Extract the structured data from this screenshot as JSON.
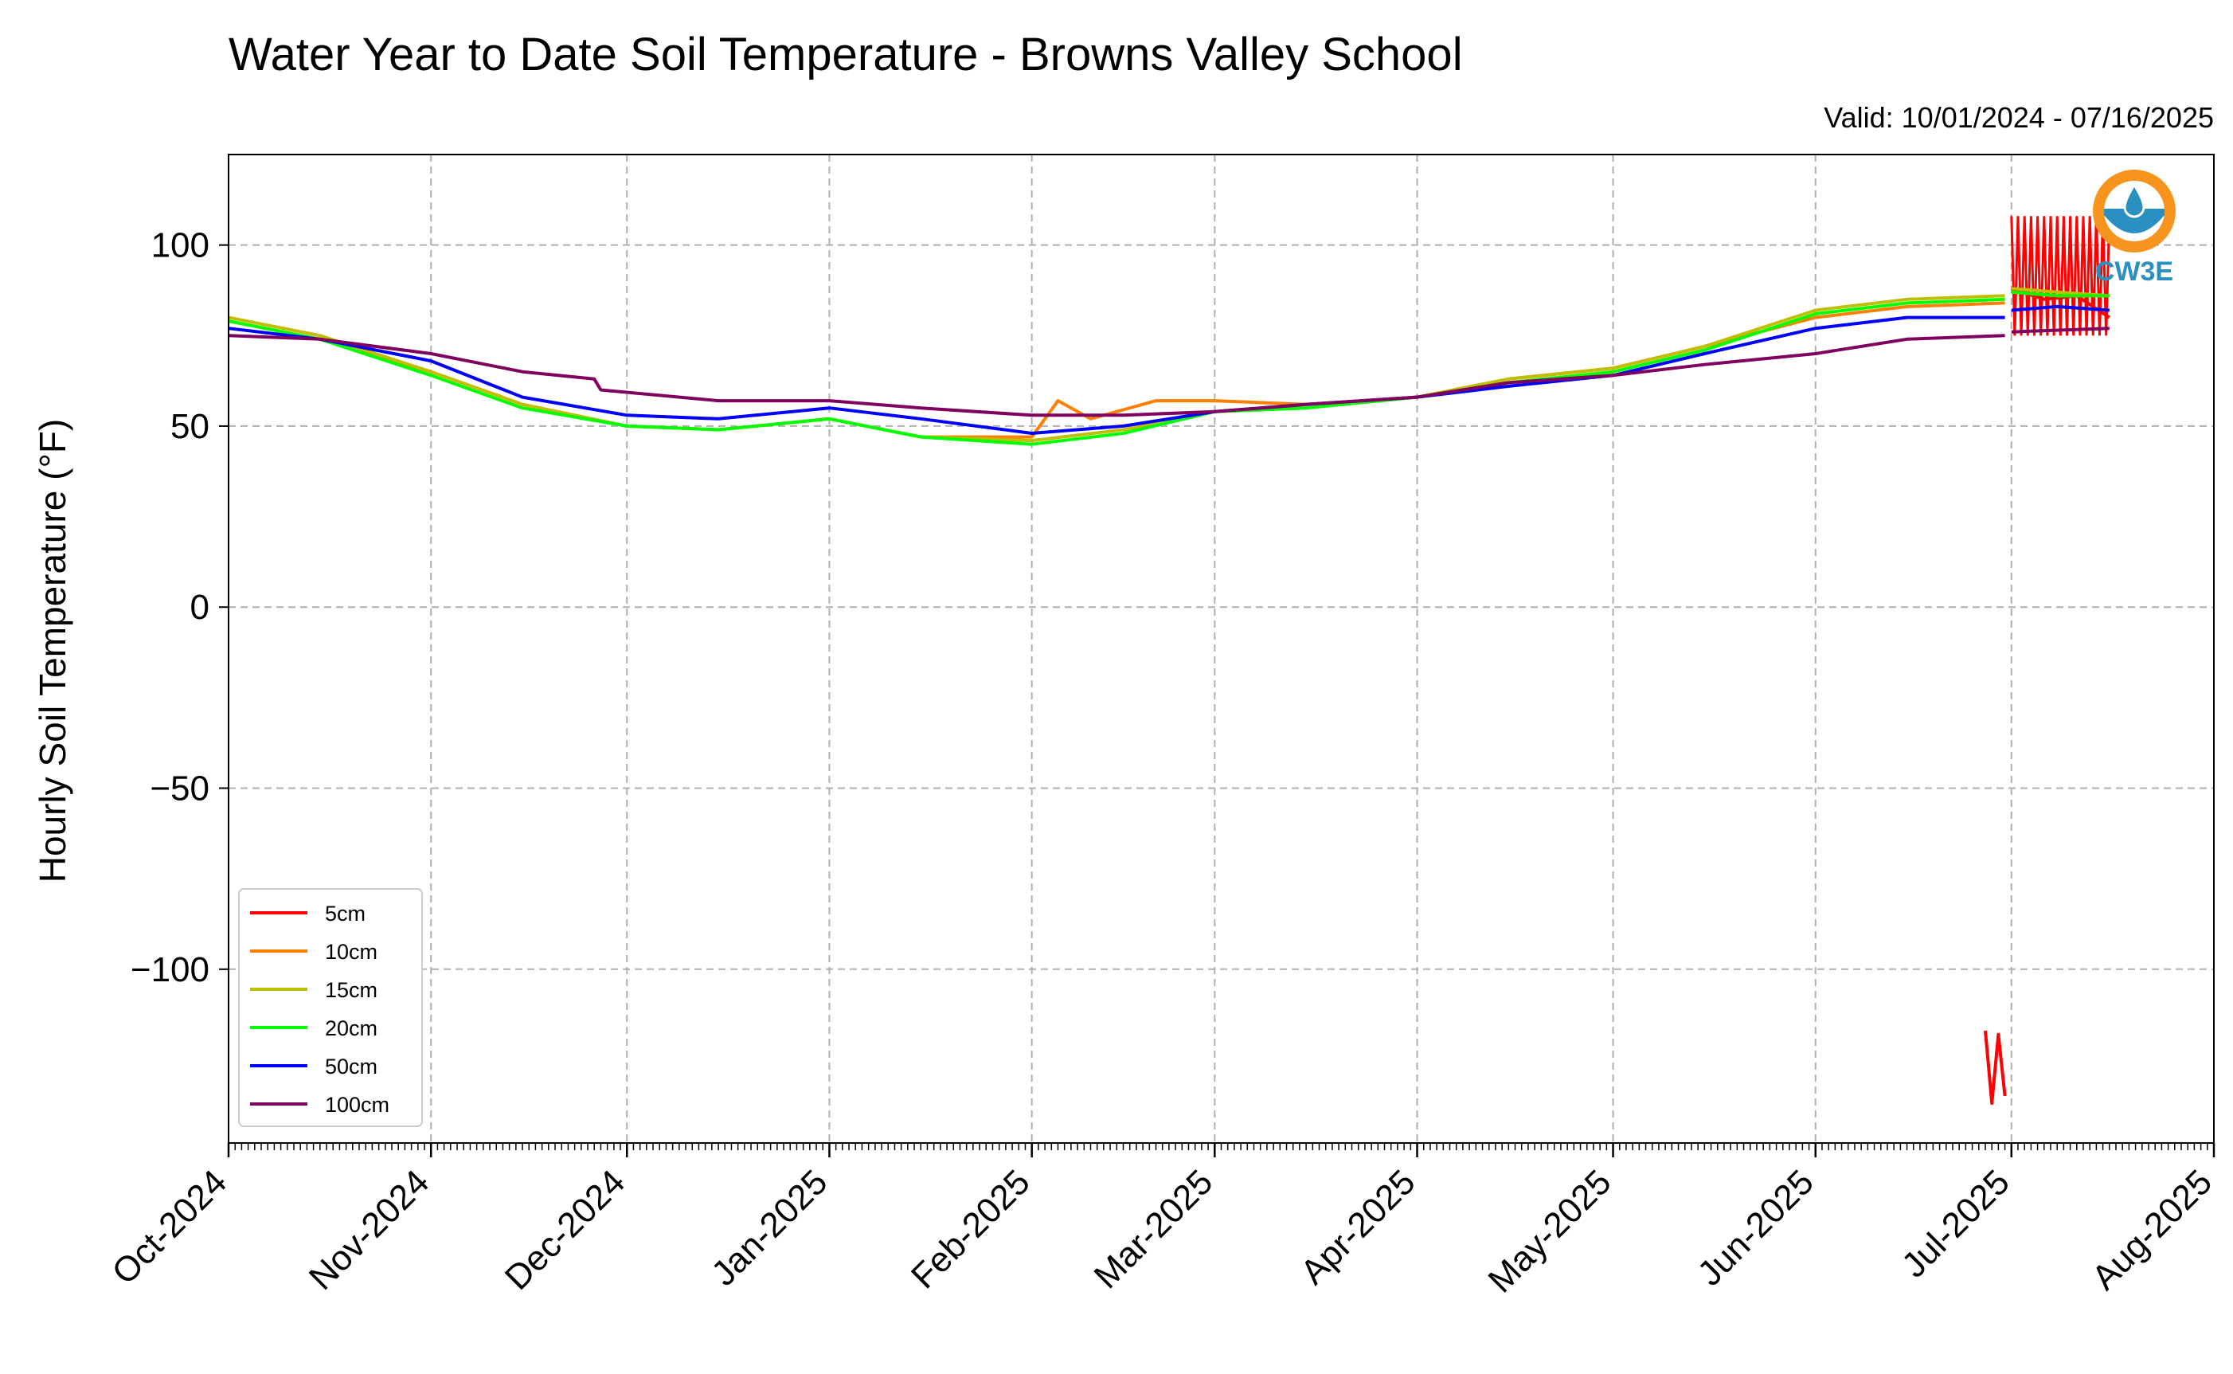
{
  "chart_data": {
    "type": "line",
    "title": "Water Year to Date Soil Temperature - Browns Valley School",
    "subtitle": "Valid: 10/01/2024 - 07/16/2025",
    "ylabel": "Hourly Soil Temperature (°F)",
    "xlabel": "",
    "ylim": [
      -148,
      125
    ],
    "xlim": [
      "2024-10-01",
      "2025-08-01"
    ],
    "yticks": [
      100,
      50,
      0,
      -50,
      -100
    ],
    "ytick_labels": [
      "100",
      "50",
      "0",
      "−50",
      "−100"
    ],
    "xtick_labels": [
      "Oct-2024",
      "Nov-2024",
      "Dec-2024",
      "Jan-2025",
      "Feb-2025",
      "Mar-2025",
      "Apr-2025",
      "May-2025",
      "Jun-2025",
      "Jul-2025",
      "Aug-2025"
    ],
    "grid": true,
    "legend_position": "lower-left",
    "logo_text": "CW3E",
    "series": [
      {
        "name": "5cm",
        "color": "#ff0000",
        "segments": [
          {
            "x": [
              "2025-06-27",
              "2025-06-28",
              "2025-06-29",
              "2025-06-30"
            ],
            "y": [
              -117,
              -137,
              -118,
              -135
            ]
          },
          {
            "x": [
              "2025-07-01",
              "2025-07-06",
              "2025-07-11",
              "2025-07-16"
            ],
            "y": [
              88,
              85,
              86,
              80
            ]
          }
        ],
        "oscillation": {
          "start": "2025-07-01",
          "end": "2025-07-16",
          "high": 108,
          "low": 75
        }
      },
      {
        "name": "10cm",
        "color": "#ff8000",
        "segments": [
          {
            "x": [
              "2024-10-01",
              "2024-10-15",
              "2024-11-01",
              "2024-11-15",
              "2024-12-01",
              "2024-12-15",
              "2025-01-01",
              "2025-01-15",
              "2025-02-01",
              "2025-02-05",
              "2025-02-10",
              "2025-02-20",
              "2025-03-01",
              "2025-03-15",
              "2025-04-01",
              "2025-04-15",
              "2025-05-01",
              "2025-05-15",
              "2025-06-01",
              "2025-06-15",
              "2025-06-30"
            ],
            "y": [
              79,
              74,
              65,
              56,
              50,
              49,
              52,
              47,
              47,
              57,
              52,
              57,
              57,
              56,
              58,
              63,
              66,
              72,
              80,
              83,
              84
            ]
          },
          {
            "x": [
              "2025-07-01",
              "2025-07-08",
              "2025-07-16"
            ],
            "y": [
              87,
              86,
              86
            ]
          }
        ]
      },
      {
        "name": "15cm",
        "color": "#bfbf00",
        "segments": [
          {
            "x": [
              "2024-10-01",
              "2024-10-15",
              "2024-11-01",
              "2024-11-15",
              "2024-12-01",
              "2024-12-15",
              "2025-01-01",
              "2025-01-15",
              "2025-02-01",
              "2025-02-15",
              "2025-03-01",
              "2025-03-15",
              "2025-04-01",
              "2025-04-15",
              "2025-05-01",
              "2025-05-15",
              "2025-06-01",
              "2025-06-15",
              "2025-06-30"
            ],
            "y": [
              80,
              75,
              65,
              56,
              50,
              49,
              52,
              47,
              46,
              49,
              54,
              55,
              58,
              63,
              66,
              72,
              82,
              85,
              86
            ]
          },
          {
            "x": [
              "2025-07-01",
              "2025-07-08",
              "2025-07-16"
            ],
            "y": [
              88,
              87,
              86
            ]
          }
        ]
      },
      {
        "name": "20cm",
        "color": "#00ff00",
        "segments": [
          {
            "x": [
              "2024-10-01",
              "2024-10-15",
              "2024-11-01",
              "2024-11-15",
              "2024-12-01",
              "2024-12-15",
              "2025-01-01",
              "2025-01-15",
              "2025-02-01",
              "2025-02-15",
              "2025-03-01",
              "2025-03-15",
              "2025-04-01",
              "2025-04-15",
              "2025-05-01",
              "2025-05-15",
              "2025-06-01",
              "2025-06-15",
              "2025-06-30"
            ],
            "y": [
              79,
              74,
              64,
              55,
              50,
              49,
              52,
              47,
              45,
              48,
              54,
              55,
              58,
              62,
              65,
              71,
              81,
              84,
              85
            ]
          },
          {
            "x": [
              "2025-07-01",
              "2025-07-08",
              "2025-07-16"
            ],
            "y": [
              87,
              86,
              86
            ]
          }
        ]
      },
      {
        "name": "50cm",
        "color": "#0000ff",
        "segments": [
          {
            "x": [
              "2024-10-01",
              "2024-10-15",
              "2024-11-01",
              "2024-11-15",
              "2024-12-01",
              "2024-12-15",
              "2025-01-01",
              "2025-01-15",
              "2025-02-01",
              "2025-02-15",
              "2025-03-01",
              "2025-03-15",
              "2025-04-01",
              "2025-04-15",
              "2025-05-01",
              "2025-05-15",
              "2025-06-01",
              "2025-06-15",
              "2025-06-30"
            ],
            "y": [
              77,
              74,
              68,
              58,
              53,
              52,
              55,
              52,
              48,
              50,
              54,
              56,
              58,
              61,
              64,
              70,
              77,
              80,
              80
            ]
          },
          {
            "x": [
              "2025-07-01",
              "2025-07-08",
              "2025-07-16"
            ],
            "y": [
              82,
              83,
              82
            ]
          }
        ]
      },
      {
        "name": "100cm",
        "color": "#800060",
        "segments": [
          {
            "x": [
              "2024-10-01",
              "2024-10-15",
              "2024-11-01",
              "2024-11-15",
              "2024-11-26",
              "2024-11-27",
              "2024-12-15",
              "2025-01-01",
              "2025-01-15",
              "2025-02-01",
              "2025-02-15",
              "2025-03-01",
              "2025-03-15",
              "2025-04-01",
              "2025-04-15",
              "2025-05-01",
              "2025-05-15",
              "2025-06-01",
              "2025-06-15",
              "2025-06-30"
            ],
            "y": [
              75,
              74,
              70,
              65,
              63,
              60,
              57,
              57,
              55,
              53,
              53,
              54,
              56,
              58,
              62,
              64,
              67,
              70,
              74,
              75
            ]
          },
          {
            "x": [
              "2025-07-01",
              "2025-07-16"
            ],
            "y": [
              76,
              77
            ]
          }
        ]
      }
    ]
  }
}
